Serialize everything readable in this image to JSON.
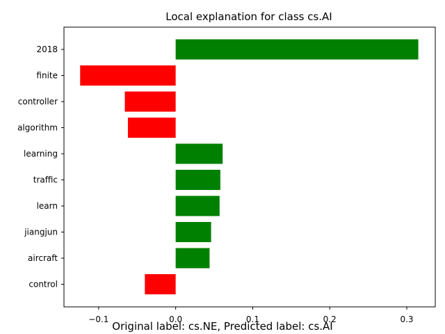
{
  "chart_data": {
    "type": "bar",
    "orientation": "horizontal",
    "title": "Local explanation for class cs.AI",
    "xlabel": "Original label: cs.NE, Predicted label: cs.AI",
    "ylabel": "",
    "categories": [
      "2018",
      "finite",
      "controller",
      "algorithm",
      "learning",
      "traffic",
      "learn",
      "jiangjun",
      "aircraft",
      "control"
    ],
    "values": [
      0.315,
      -0.124,
      -0.066,
      -0.062,
      0.061,
      0.058,
      0.057,
      0.046,
      0.044,
      -0.04
    ],
    "xlim": [
      -0.145,
      0.337
    ],
    "xticks": [
      -0.1,
      0.0,
      0.1,
      0.2,
      0.3
    ],
    "xtick_labels": [
      "−0.1",
      "0.0",
      "0.1",
      "0.2",
      "0.3"
    ],
    "positive_color": "#008000",
    "negative_color": "#ff0000",
    "grid": false,
    "legend": "none"
  }
}
